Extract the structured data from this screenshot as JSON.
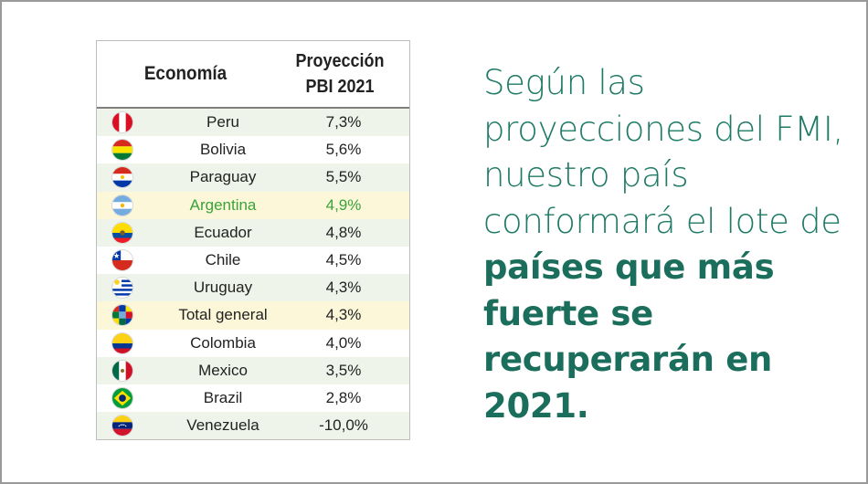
{
  "table": {
    "header_economy": "Economía",
    "header_projection_line1": "Proyección",
    "header_projection_line2": "PBI 2021",
    "rows": [
      {
        "country": "Peru",
        "value": "7,3%",
        "flag": "peru-flag"
      },
      {
        "country": "Bolivia",
        "value": "5,6%",
        "flag": "bolivia-flag"
      },
      {
        "country": "Paraguay",
        "value": "5,5%",
        "flag": "paraguay-flag"
      },
      {
        "country": "Argentina",
        "value": "4,9%",
        "flag": "argentina-flag"
      },
      {
        "country": "Ecuador",
        "value": "4,8%",
        "flag": "ecuador-flag"
      },
      {
        "country": "Chile",
        "value": "4,5%",
        "flag": "chile-flag"
      },
      {
        "country": "Uruguay",
        "value": "4,3%",
        "flag": "uruguay-flag"
      },
      {
        "country": "Total general",
        "value": "4,3%",
        "flag": "world-flags-icon"
      },
      {
        "country": "Colombia",
        "value": "4,0%",
        "flag": "colombia-flag"
      },
      {
        "country": "Mexico",
        "value": "3,5%",
        "flag": "mexico-flag"
      },
      {
        "country": "Brazil",
        "value": "2,8%",
        "flag": "brazil-flag"
      },
      {
        "country": "Venezuela",
        "value": "-10,0%",
        "flag": "venezuela-flag"
      }
    ]
  },
  "statement": {
    "regular": "Según las proyecciones del FMI, nuestro país conformará el lote de ",
    "bold": "países que más fuerte se recuperarán en 2021."
  },
  "colors": {
    "statement_text": "#1f7a66",
    "highlight_country": "#3aa33a",
    "row_alt": "#eef4ea",
    "row_highlight": "#fbf7d8"
  }
}
